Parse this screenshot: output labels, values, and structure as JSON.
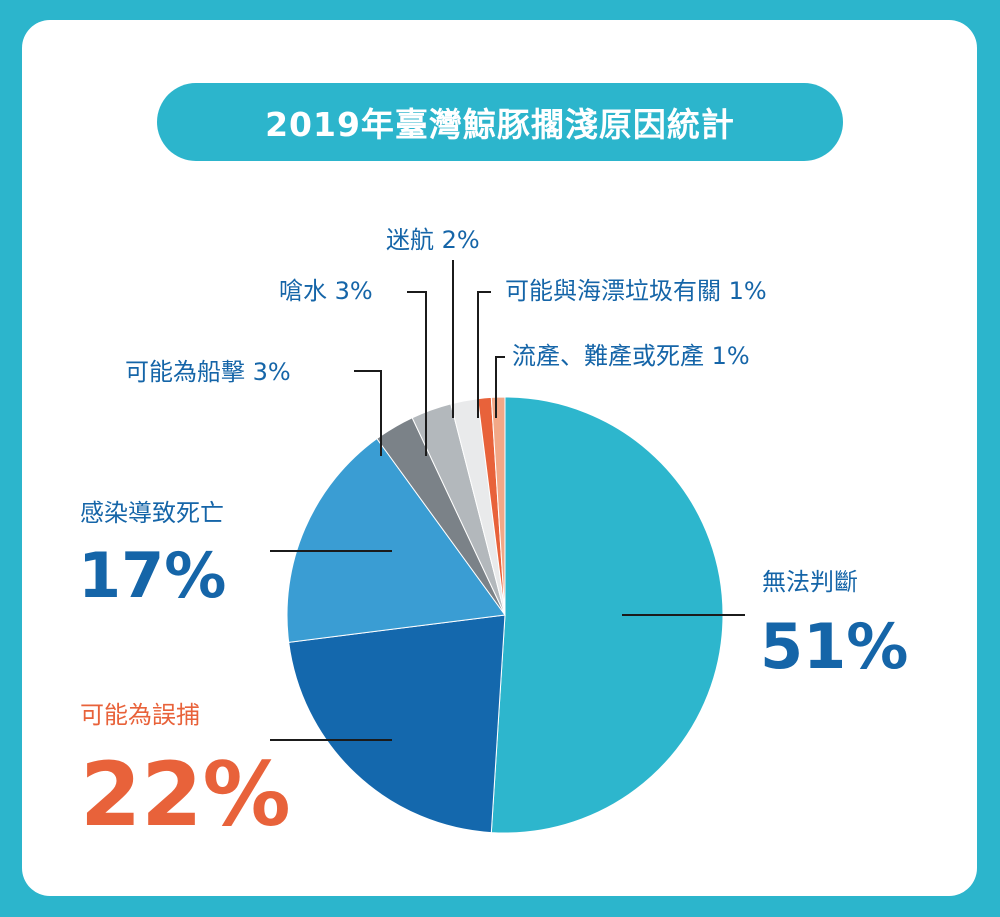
{
  "chart_data": {
    "type": "pie",
    "title": "2019年臺灣鯨豚擱淺原因統計",
    "slices": [
      {
        "label": "無法判斷",
        "value": 51,
        "display": "51%",
        "color": "#2db6cd"
      },
      {
        "label": "可能為誤捕",
        "value": 22,
        "display": "22%",
        "color": "#1468ad"
      },
      {
        "label": "感染導致死亡",
        "value": 17,
        "display": "17%",
        "color": "#3a9dd3"
      },
      {
        "label": "可能為船擊",
        "value": 3,
        "display": "3%",
        "color": "#7b8288"
      },
      {
        "label": "嗆水",
        "value": 3,
        "display": "3%",
        "color": "#b3b8bc"
      },
      {
        "label": "迷航",
        "value": 2,
        "display": "2%",
        "color": "#e9eaeb"
      },
      {
        "label": "可能與海漂垃圾有關",
        "value": 1,
        "display": "1%",
        "color": "#e8623a"
      },
      {
        "label": "流產、難產或死產",
        "value": 1,
        "display": "1%",
        "color": "#f2a887"
      }
    ]
  }
}
